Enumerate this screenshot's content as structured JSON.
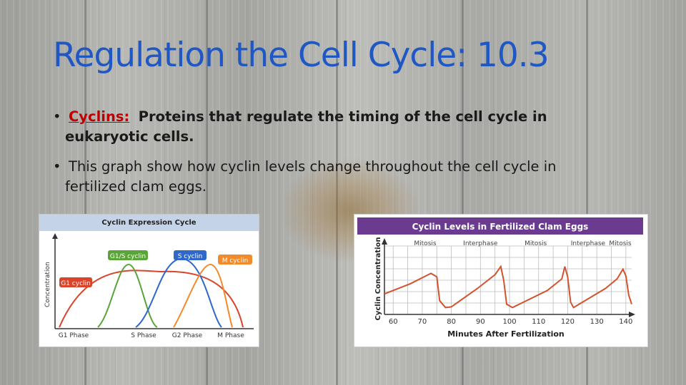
{
  "slide": {
    "title": "Regulation the Cell Cycle: 10.3",
    "bullets": [
      {
        "term": "Cyclins:",
        "text": "Proteins that regulate the timing of the cell cycle in",
        "text_cont": "eukaryotic cells."
      },
      {
        "text": "This graph show how cyclin levels change throughout the cell cycle in",
        "text_cont": "fertilized clam eggs."
      }
    ],
    "title_color": "#1f57c3",
    "term_color": "#c00000"
  },
  "left_chart": {
    "title": "Cyclin Expression Cycle",
    "ylabel": "Concentration",
    "curves": [
      {
        "label": "G1 cyclin",
        "color": "#d8452b"
      },
      {
        "label": "G1/S cyclin",
        "color": "#5aa43a"
      },
      {
        "label": "S cyclin",
        "color": "#2f68c8"
      },
      {
        "label": "M cyclin",
        "color": "#f28b2c"
      }
    ],
    "phases": [
      "G1 Phase",
      "S Phase",
      "G2 Phase",
      "M Phase"
    ]
  },
  "chart_data": {
    "type": "line",
    "title": "Cyclin Levels in Fertilized Clam Eggs",
    "xlabel": "Minutes After Fertilization",
    "ylabel": "Cyclin Concentration",
    "x_ticks": [
      60,
      70,
      80,
      90,
      100,
      110,
      120,
      130,
      140
    ],
    "xlim": [
      57,
      142
    ],
    "phase_labels": [
      {
        "label": "Mitosis",
        "x": 71
      },
      {
        "label": "Interphase",
        "x": 90
      },
      {
        "label": "Mitosis",
        "x": 109
      },
      {
        "label": "Interphase",
        "x": 127
      },
      {
        "label": "Mitosis",
        "x": 144
      }
    ],
    "series": [
      {
        "color": "#d2532e",
        "x": [
          57,
          66,
          73,
          75,
          76,
          78,
          80,
          89,
          95,
          97,
          98,
          99,
          101,
          113,
          118,
          119,
          120,
          121,
          122,
          133,
          137,
          139,
          140,
          141,
          142
        ],
        "y": [
          0.3,
          0.45,
          0.6,
          0.55,
          0.2,
          0.1,
          0.11,
          0.38,
          0.58,
          0.7,
          0.5,
          0.15,
          0.1,
          0.35,
          0.52,
          0.7,
          0.55,
          0.18,
          0.1,
          0.38,
          0.52,
          0.66,
          0.56,
          0.28,
          0.15
        ]
      }
    ]
  }
}
